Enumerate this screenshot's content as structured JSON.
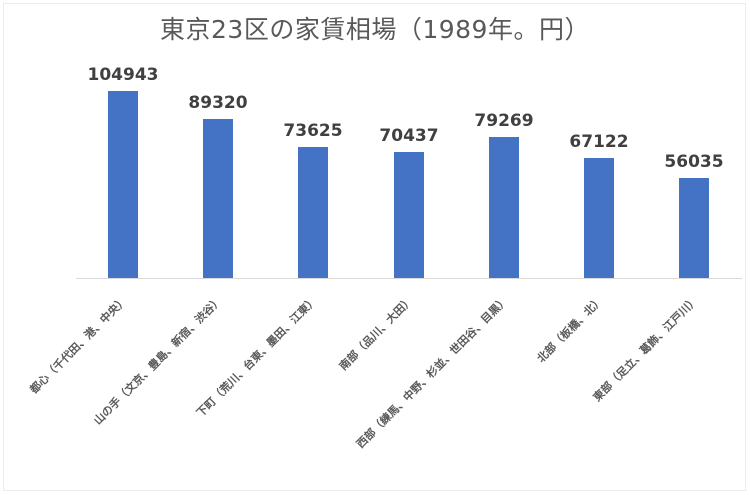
{
  "chart_data": {
    "type": "bar",
    "title": "東京23区の家賃相場（1989年。円）",
    "xlabel": "",
    "ylabel": "",
    "categories": [
      "都心（千代田、港、中央）",
      "山の手（文京、豊島、新宿、渋谷）",
      "下町（荒川、台東、墨田、江東）",
      "南部（品川、大田）",
      "西部（練馬、中野、杉並、世田谷、目黒）",
      "北部（板橋、北）",
      "東部（足立、葛飾、江戸川）"
    ],
    "values": [
      104943,
      89320,
      73625,
      70437,
      79269,
      67122,
      56035
    ],
    "value_labels": [
      "104943",
      "89320",
      "73625",
      "70437",
      "79269",
      "67122",
      "56035"
    ],
    "bar_color": "#4472c4",
    "grid": false,
    "legend": "none",
    "data_labels": true
  }
}
